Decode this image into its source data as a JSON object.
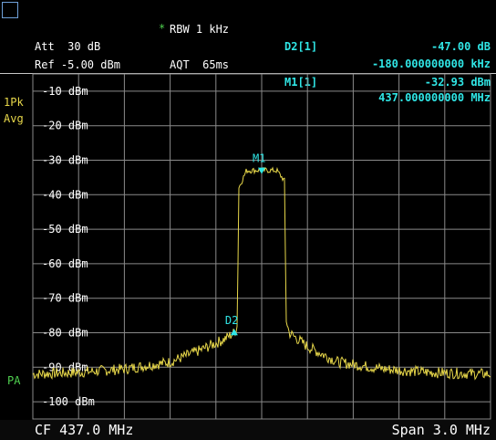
{
  "header": {
    "rbw_marker": "*",
    "rbw": "RBW 1 kHz",
    "att": "Att  30 dB",
    "ref": "Ref -5.00 dBm",
    "aqt": "AQT  65ms"
  },
  "markers": {
    "d2_label": "D2[1]",
    "d2_value": "-47.00 dB",
    "d2_freq": "-180.000000000 kHz",
    "m1_label": "M1[1]",
    "m1_value": "-32.93 dBm",
    "m1_freq": "437.000000000 MHz"
  },
  "side": {
    "trace_mode_1": "1Pk",
    "trace_mode_2": "Avg",
    "pa": "PA"
  },
  "footer": {
    "cf": "CF 437.0 MHz",
    "span": "Span 3.0 MHz"
  },
  "colors": {
    "trace": "#e8d84a",
    "marker": "#30e6e6",
    "grid": "#8a8a8a",
    "background": "#000000"
  },
  "chart_data": {
    "type": "line",
    "x_unit": "MHz",
    "center_mhz": 437.0,
    "span_mhz": 3.0,
    "ylim": [
      -105,
      -5
    ],
    "yticks": [
      -10,
      -20,
      -30,
      -40,
      -50,
      -60,
      -70,
      -80,
      -90,
      -100
    ],
    "ytick_labels": [
      "-10 dBm",
      "-20 dBm",
      "-30 dBm",
      "-40 dBm",
      "-50 dBm",
      "-60 dBm",
      "-70 dBm",
      "-80 dBm",
      "-90 dBm",
      "-100 dBm"
    ],
    "grid": true,
    "trace": {
      "x": [
        435.5,
        435.8,
        436.1,
        436.4,
        436.6,
        436.75,
        436.82,
        436.84,
        436.85,
        436.9,
        437.0,
        437.1,
        437.15,
        437.16,
        437.18,
        437.3,
        437.5,
        437.8,
        438.1,
        438.5
      ],
      "y": [
        -92,
        -91.5,
        -90.5,
        -88.5,
        -85,
        -82,
        -80,
        -78,
        -38,
        -33,
        -32.9,
        -33,
        -36,
        -76,
        -80,
        -84,
        -88.5,
        -90.5,
        -91.5,
        -92
      ]
    },
    "markers": [
      {
        "name": "M1",
        "x": 437.0,
        "y": -32.93
      },
      {
        "name": "D2",
        "x": 436.82,
        "y": -79.93
      }
    ]
  }
}
